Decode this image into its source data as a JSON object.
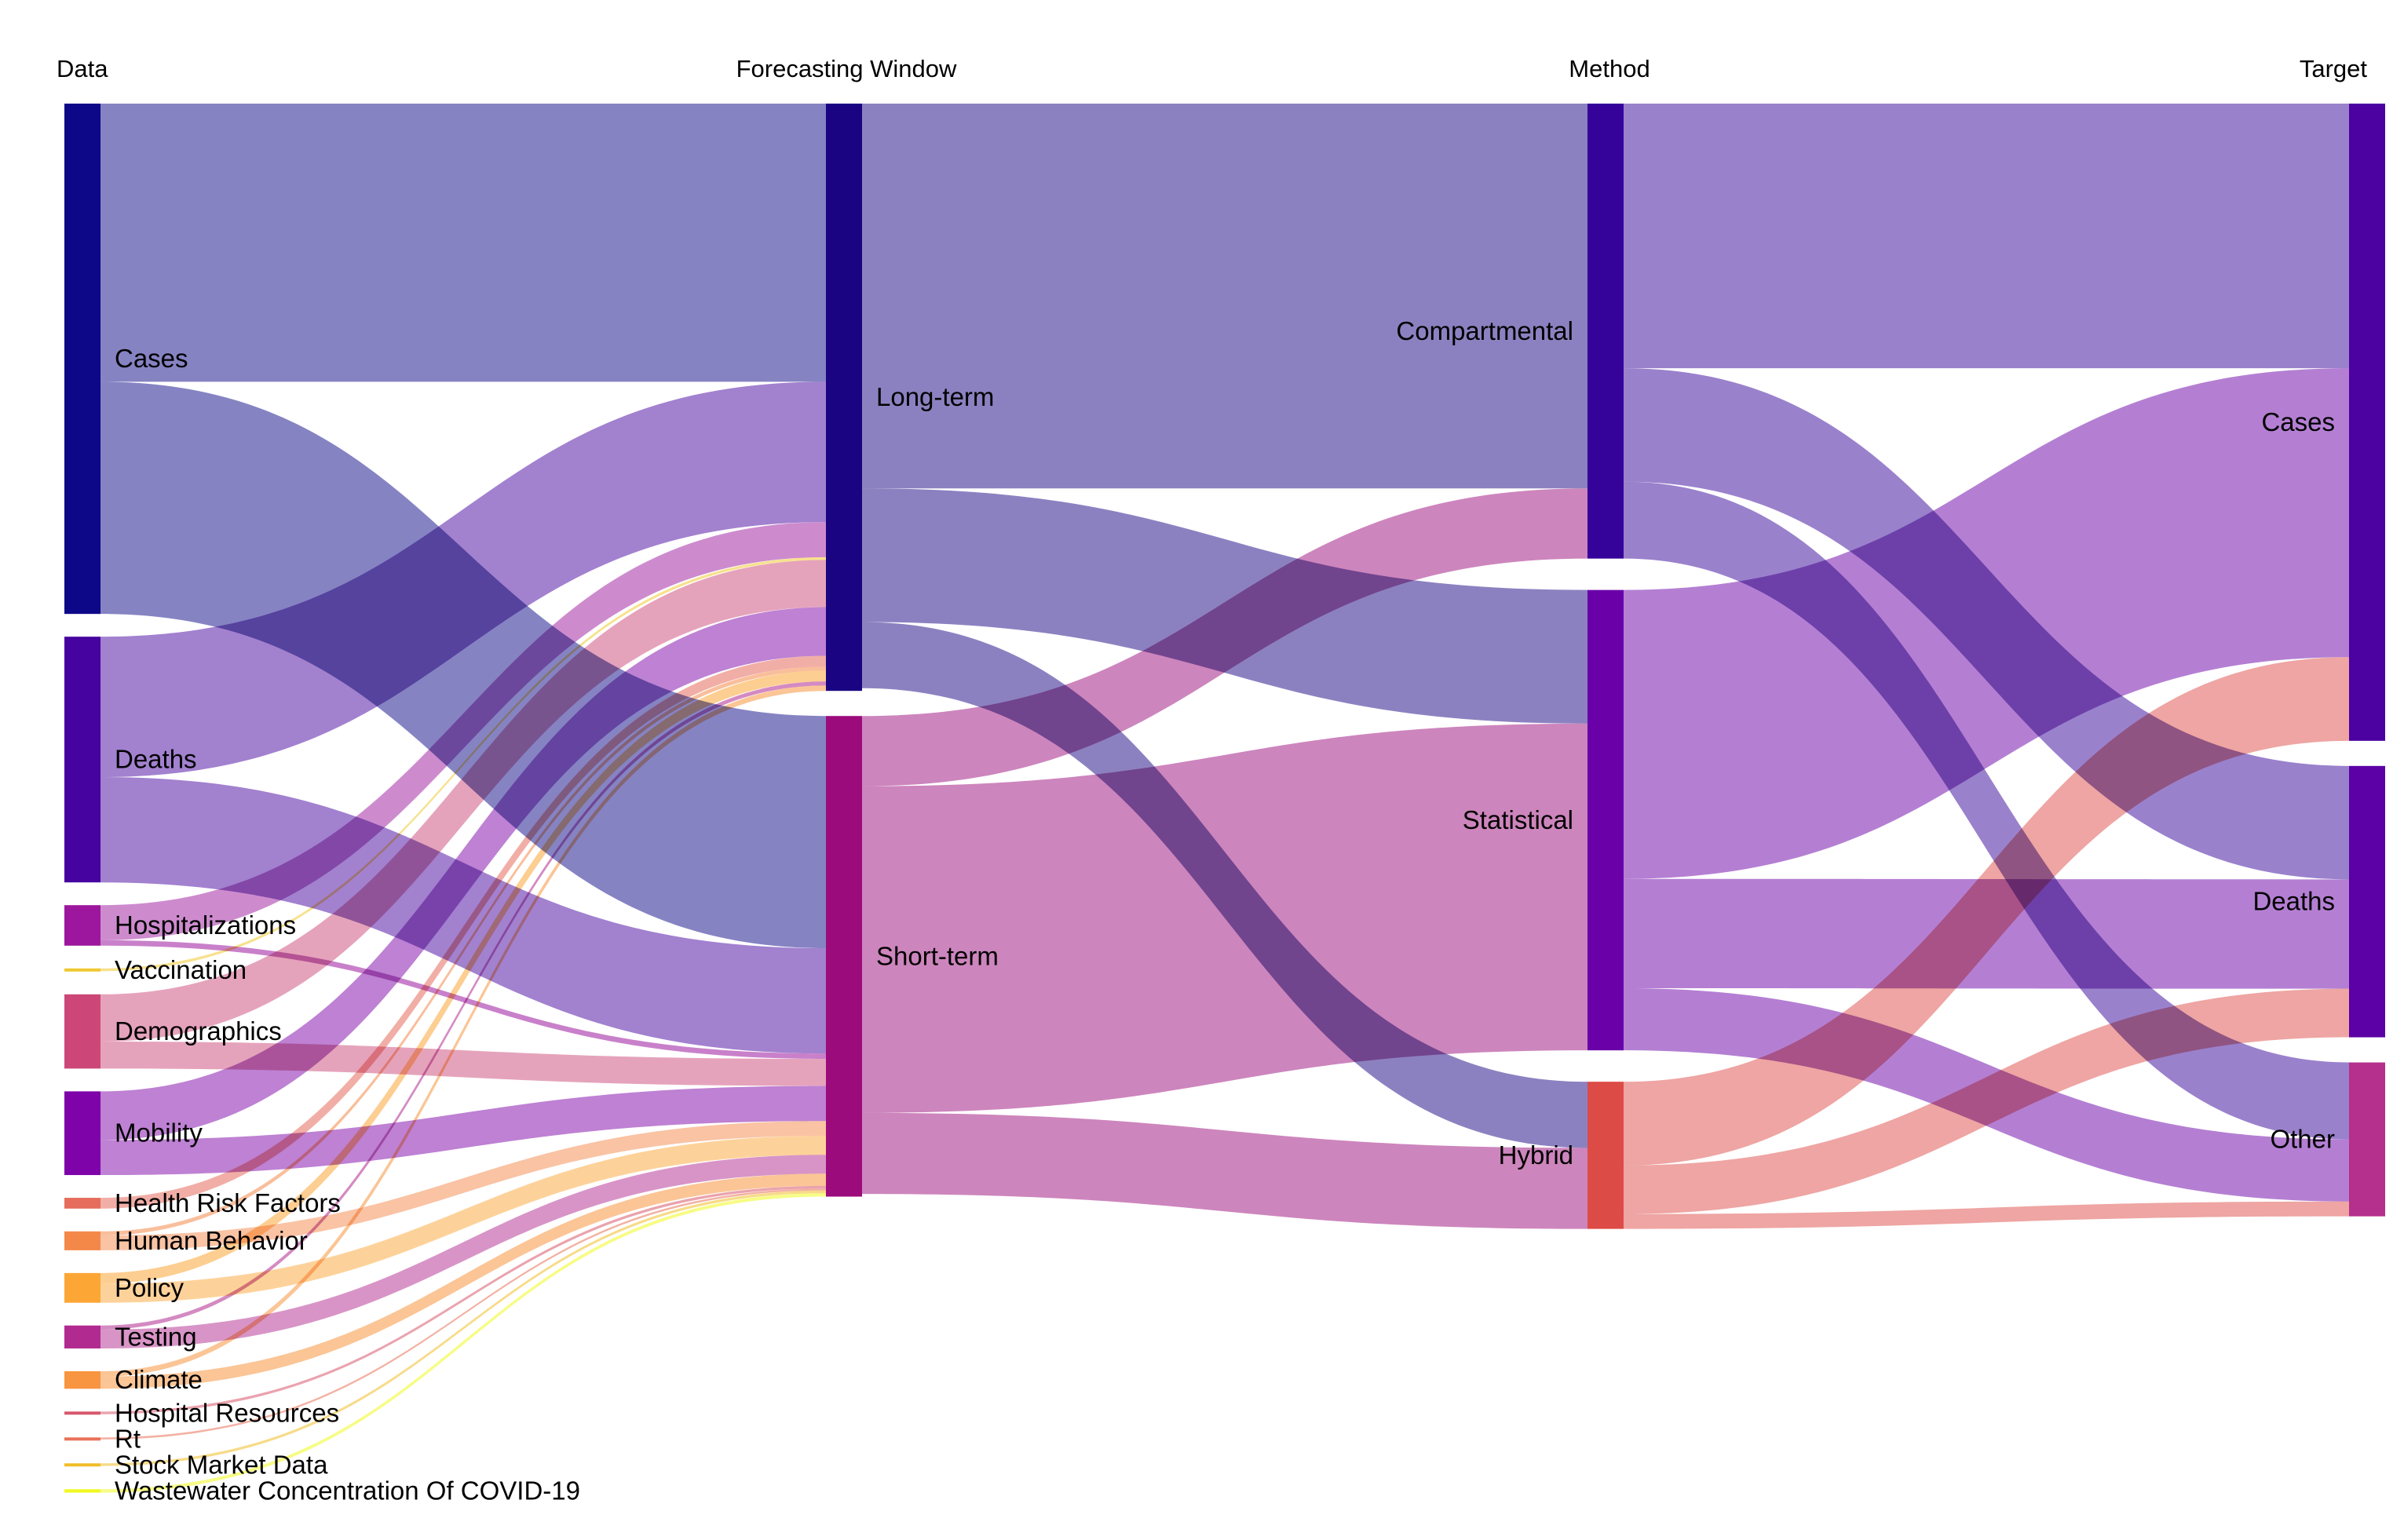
{
  "chart_data": {
    "type": "sankey",
    "columns": [
      "Data",
      "Forecasting Window",
      "Method",
      "Target"
    ],
    "nodes": [
      {
        "id": "data_cases",
        "label": "Cases",
        "column": 0,
        "color": "#0d0887"
      },
      {
        "id": "data_deaths",
        "label": "Deaths",
        "column": 0,
        "color": "#46039f"
      },
      {
        "id": "data_hosp",
        "label": "Hospitalizations",
        "column": 0,
        "color": "#9c179e"
      },
      {
        "id": "data_vacc",
        "label": "Vaccination",
        "column": 0,
        "color": "#f0c830"
      },
      {
        "id": "data_demo",
        "label": "Demographics",
        "column": 0,
        "color": "#cc4778"
      },
      {
        "id": "data_mob",
        "label": "Mobility",
        "column": 0,
        "color": "#7e03a8"
      },
      {
        "id": "data_hrf",
        "label": "Health Risk Factors",
        "column": 0,
        "color": "#e66c5c"
      },
      {
        "id": "data_hb",
        "label": "Human Behavior",
        "column": 0,
        "color": "#f48849"
      },
      {
        "id": "data_policy",
        "label": "Policy",
        "column": 0,
        "color": "#fca636"
      },
      {
        "id": "data_testing",
        "label": "Testing",
        "column": 0,
        "color": "#b12a90"
      },
      {
        "id": "data_climate",
        "label": "Climate",
        "column": 0,
        "color": "#f89540"
      },
      {
        "id": "data_hr",
        "label": "Hospital Resources",
        "column": 0,
        "color": "#d8576b"
      },
      {
        "id": "data_rt",
        "label": "Rt",
        "column": 0,
        "color": "#e97158"
      },
      {
        "id": "data_stock",
        "label": "Stock Market Data",
        "column": 0,
        "color": "#f0bd27"
      },
      {
        "id": "data_ww",
        "label": "Wastewater Concentration Of COVID-19",
        "column": 0,
        "color": "#f0f921"
      },
      {
        "id": "fw_long",
        "label": "Long-term",
        "column": 1,
        "color": "#1a0482"
      },
      {
        "id": "fw_short",
        "label": "Short-term",
        "column": 1,
        "color": "#9c0b7c"
      },
      {
        "id": "m_comp",
        "label": "Compartmental",
        "column": 2,
        "color": "#35039a"
      },
      {
        "id": "m_stat",
        "label": "Statistical",
        "column": 2,
        "color": "#6a00a8"
      },
      {
        "id": "m_hyb",
        "label": "Hybrid",
        "column": 2,
        "color": "#dd4b47"
      },
      {
        "id": "t_cases",
        "label": "Cases",
        "column": 3,
        "color": "#4c02a1"
      },
      {
        "id": "t_deaths",
        "label": "Deaths",
        "column": 3,
        "color": "#5b01a5"
      },
      {
        "id": "t_other",
        "label": "Other",
        "column": 3,
        "color": "#b52f8c"
      }
    ],
    "links": [
      {
        "source": "data_cases",
        "target": "fw_long",
        "value": 20.6
      },
      {
        "source": "data_cases",
        "target": "fw_short",
        "value": 17.2
      },
      {
        "source": "data_deaths",
        "target": "fw_long",
        "value": 10.4
      },
      {
        "source": "data_deaths",
        "target": "fw_short",
        "value": 7.8
      },
      {
        "source": "data_hosp",
        "target": "fw_long",
        "value": 2.6
      },
      {
        "source": "data_hosp",
        "target": "fw_short",
        "value": 0.4
      },
      {
        "source": "data_vacc",
        "target": "fw_long",
        "value": 0.2
      },
      {
        "source": "data_demo",
        "target": "fw_long",
        "value": 3.5
      },
      {
        "source": "data_demo",
        "target": "fw_short",
        "value": 2.0
      },
      {
        "source": "data_mob",
        "target": "fw_long",
        "value": 3.6
      },
      {
        "source": "data_mob",
        "target": "fw_short",
        "value": 2.6
      },
      {
        "source": "data_hrf",
        "target": "fw_long",
        "value": 0.8
      },
      {
        "source": "data_hb",
        "target": "fw_long",
        "value": 0.3
      },
      {
        "source": "data_hb",
        "target": "fw_short",
        "value": 1.1
      },
      {
        "source": "data_policy",
        "target": "fw_long",
        "value": 0.8
      },
      {
        "source": "data_policy",
        "target": "fw_short",
        "value": 1.4
      },
      {
        "source": "data_testing",
        "target": "fw_long",
        "value": 0.3
      },
      {
        "source": "data_testing",
        "target": "fw_short",
        "value": 1.4
      },
      {
        "source": "data_climate",
        "target": "fw_long",
        "value": 0.4
      },
      {
        "source": "data_climate",
        "target": "fw_short",
        "value": 0.9
      },
      {
        "source": "data_hr",
        "target": "fw_short",
        "value": 0.2
      },
      {
        "source": "data_rt",
        "target": "fw_short",
        "value": 0.15
      },
      {
        "source": "data_stock",
        "target": "fw_short",
        "value": 0.2
      },
      {
        "source": "data_ww",
        "target": "fw_short",
        "value": 0.25
      },
      {
        "source": "fw_long",
        "target": "m_comp",
        "value": 28.5
      },
      {
        "source": "fw_long",
        "target": "m_stat",
        "value": 9.9
      },
      {
        "source": "fw_long",
        "target": "m_hyb",
        "value": 4.9
      },
      {
        "source": "fw_short",
        "target": "m_comp",
        "value": 5.2
      },
      {
        "source": "fw_short",
        "target": "m_stat",
        "value": 24.2
      },
      {
        "source": "fw_short",
        "target": "m_hyb",
        "value": 6.0
      },
      {
        "source": "m_comp",
        "target": "t_cases",
        "value": 19.6
      },
      {
        "source": "m_comp",
        "target": "t_deaths",
        "value": 8.4
      },
      {
        "source": "m_comp",
        "target": "t_other",
        "value": 5.7
      },
      {
        "source": "m_stat",
        "target": "t_cases",
        "value": 21.4
      },
      {
        "source": "m_stat",
        "target": "t_deaths",
        "value": 8.1
      },
      {
        "source": "m_stat",
        "target": "t_other",
        "value": 4.6
      },
      {
        "source": "m_hyb",
        "target": "t_cases",
        "value": 6.2
      },
      {
        "source": "m_hyb",
        "target": "t_deaths",
        "value": 3.6
      },
      {
        "source": "m_hyb",
        "target": "t_other",
        "value": 1.1
      }
    ]
  }
}
